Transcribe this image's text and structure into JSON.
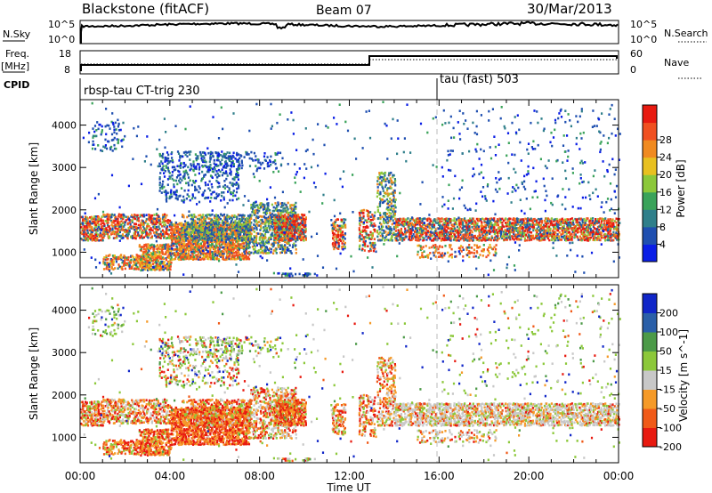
{
  "header": {
    "station": "Blackstone (fitACF)",
    "beam": "Beam 07",
    "date": "30/Mar/2013"
  },
  "noise_panel": {
    "left_label": "N.Sky",
    "left_ticks": [
      "10^5",
      "10^0"
    ],
    "right_label": "N.Search",
    "right_ticks": [
      "10^5",
      "10^0"
    ]
  },
  "freq_panel": {
    "left_label_1": "Freq.",
    "left_label_2": "[MHz]",
    "left_ticks": [
      "18",
      "8"
    ],
    "right_label": "Nave",
    "right_ticks": [
      "60",
      "0"
    ]
  },
  "cpid_panel": {
    "label": "CPID",
    "segments": [
      "rbsp-tau CT-trig 230",
      "tau (fast) 503"
    ]
  },
  "colors": {
    "power": [
      "#0a1ee6",
      "#1f4fb0",
      "#2f7f8a",
      "#3aa35a",
      "#8cc83a",
      "#e8c020",
      "#f08a20",
      "#f05020",
      "#e81a10"
    ],
    "velocity": [
      "#e81a10",
      "#f05a18",
      "#f59a28",
      "#c8c8c8",
      "#8cc83a",
      "#4c9a48",
      "#2a5fa8",
      "#1026c8"
    ]
  },
  "chart_data": [
    {
      "type": "heatmap",
      "title": "Power",
      "ylabel": "Slant Range [km]",
      "yticks": [
        "1000",
        "2000",
        "3000",
        "4000"
      ],
      "ylim": [
        400,
        4600
      ],
      "xlim": [
        0,
        24
      ],
      "colorbar_label": "Power [dB]",
      "colorbar_ticks": [
        "4",
        "8",
        "12",
        "16",
        "20",
        "24",
        "28"
      ]
    },
    {
      "type": "heatmap",
      "title": "Velocity",
      "ylabel": "Slant Range [km]",
      "yticks": [
        "1000",
        "2000",
        "3000",
        "4000"
      ],
      "ylim": [
        400,
        4600
      ],
      "xlim": [
        0,
        24
      ],
      "xticks": [
        "00:00",
        "04:00",
        "08:00",
        "12:00",
        "16:00",
        "20:00",
        "00:00"
      ],
      "xlabel": "Time UT",
      "colorbar_label": "Velocity [m s^-1]",
      "colorbar_ticks": [
        "200",
        "100",
        "50",
        "15",
        "-15",
        "-50",
        "-100",
        "-200"
      ]
    }
  ]
}
